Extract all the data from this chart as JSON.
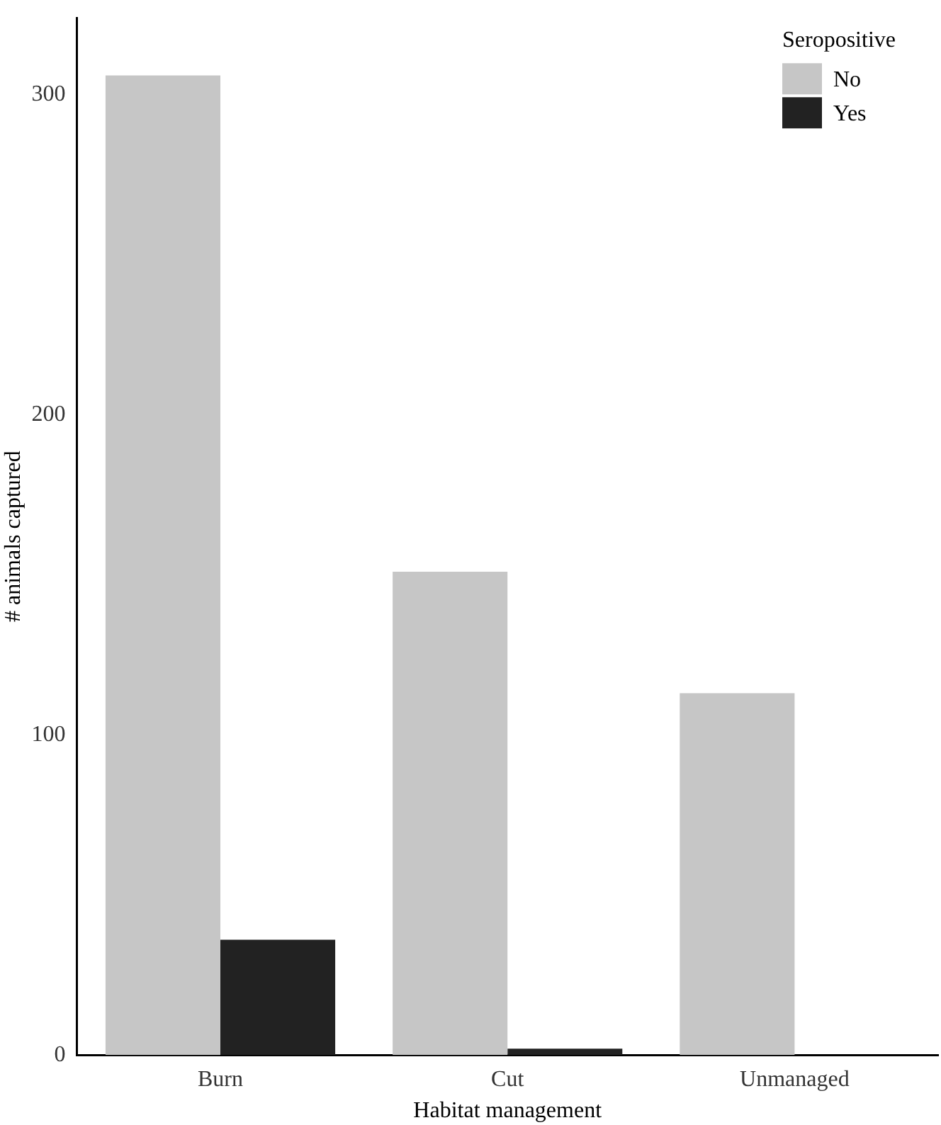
{
  "chart_data": {
    "type": "bar",
    "xlabel": "Habitat management",
    "ylabel": "# animals captured",
    "legend_title": "Seropositive",
    "categories": [
      "Burn",
      "Cut",
      "Unmanaged"
    ],
    "series": [
      {
        "name": "No",
        "color": "#c6c6c6",
        "values": [
          306,
          151,
          113
        ]
      },
      {
        "name": "Yes",
        "color": "#222222",
        "values": [
          36,
          2,
          0
        ]
      }
    ],
    "ylim": [
      0,
      324
    ],
    "yticks": [
      0,
      100,
      200,
      300
    ],
    "grid": false,
    "legend": "top right"
  }
}
